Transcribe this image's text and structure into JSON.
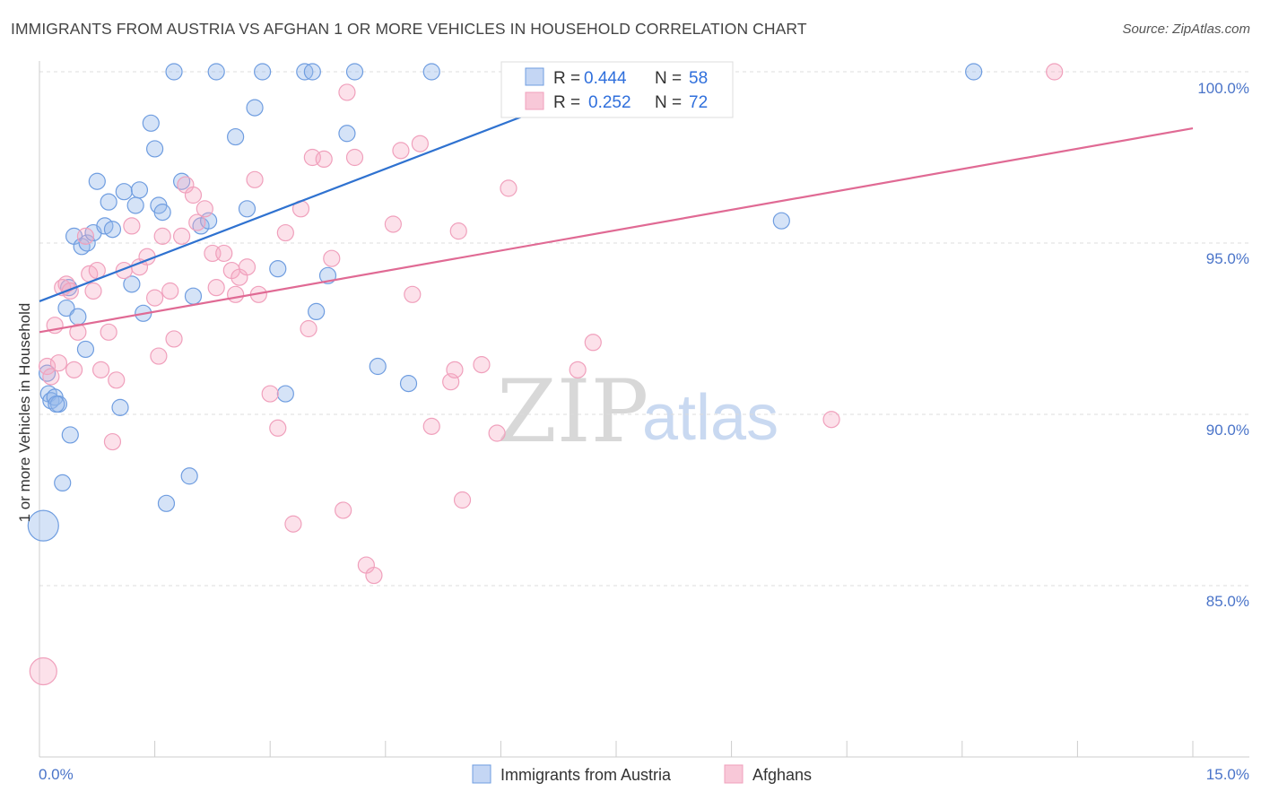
{
  "title": "IMMIGRANTS FROM AUSTRIA VS AFGHAN 1 OR MORE VEHICLES IN HOUSEHOLD CORRELATION CHART",
  "source": "Source: ZipAtlas.com",
  "watermark": {
    "zip": "ZIP",
    "atlas": "atlas"
  },
  "colors": {
    "blue": "#6f9de0",
    "blue_line": "#2f72d0",
    "pink": "#f0a0bc",
    "pink_line": "#e06a94"
  },
  "legend": {
    "r_label": "R =",
    "n_label": "N =",
    "rows": [
      {
        "r": "0.444",
        "n": "58"
      },
      {
        "r": "0.252",
        "n": "72"
      }
    ]
  },
  "chart_data": {
    "type": "scatter",
    "title": "IMMIGRANTS FROM AUSTRIA VS AFGHAN 1 OR MORE VEHICLES IN HOUSEHOLD CORRELATION CHART",
    "xlabel": "",
    "ylabel": "1 or more Vehicles in Household",
    "xlim": [
      0,
      15
    ],
    "ylim": [
      80.5,
      100.5
    ],
    "x_tick_labels": [
      "0.0%",
      "15.0%"
    ],
    "y_ticks": [
      85,
      90,
      95,
      100
    ],
    "y_tick_labels": [
      "85.0%",
      "90.0%",
      "95.0%",
      "100.0%"
    ],
    "grid": true,
    "legend_position": "top-center",
    "series": [
      {
        "name": "Immigrants from Austria",
        "r": 0.444,
        "n": 58,
        "trend": {
          "x": [
            0,
            7.8
          ],
          "y": [
            93.3,
            100.0
          ]
        },
        "points": [
          [
            0.05,
            86.75,
            3
          ],
          [
            0.1,
            91.2,
            1
          ],
          [
            0.12,
            90.6,
            1
          ],
          [
            0.15,
            90.4,
            1
          ],
          [
            0.2,
            90.5,
            1
          ],
          [
            0.25,
            90.3,
            1
          ],
          [
            0.3,
            88.0,
            1
          ],
          [
            0.35,
            93.1,
            1
          ],
          [
            0.38,
            93.7,
            1
          ],
          [
            0.4,
            89.4,
            1
          ],
          [
            0.45,
            95.2,
            1
          ],
          [
            0.5,
            92.85,
            1
          ],
          [
            0.55,
            94.9,
            1
          ],
          [
            0.6,
            91.9,
            1
          ],
          [
            0.62,
            95.0,
            1
          ],
          [
            0.7,
            95.3,
            1
          ],
          [
            0.75,
            96.8,
            1
          ],
          [
            0.85,
            95.5,
            1
          ],
          [
            0.9,
            96.2,
            1
          ],
          [
            0.95,
            95.4,
            1
          ],
          [
            1.05,
            90.2,
            1
          ],
          [
            1.1,
            96.5,
            1
          ],
          [
            1.2,
            93.8,
            1
          ],
          [
            1.25,
            96.1,
            1
          ],
          [
            1.3,
            96.55,
            1
          ],
          [
            1.35,
            92.95,
            1
          ],
          [
            1.45,
            98.5,
            1
          ],
          [
            1.5,
            97.75,
            1
          ],
          [
            1.55,
            96.1,
            1
          ],
          [
            1.6,
            95.9,
            1
          ],
          [
            1.65,
            87.4,
            1
          ],
          [
            1.75,
            100.0,
            1
          ],
          [
            1.85,
            96.8,
            1
          ],
          [
            1.95,
            88.2,
            1
          ],
          [
            2.0,
            93.45,
            1
          ],
          [
            2.1,
            95.5,
            1
          ],
          [
            2.2,
            95.65,
            1
          ],
          [
            2.3,
            100.0,
            1
          ],
          [
            2.55,
            98.1,
            1
          ],
          [
            2.7,
            96.0,
            1
          ],
          [
            2.8,
            98.95,
            1
          ],
          [
            2.9,
            100.0,
            1
          ],
          [
            3.1,
            94.25,
            1
          ],
          [
            3.2,
            90.6,
            1
          ],
          [
            3.45,
            100.0,
            1
          ],
          [
            3.55,
            100.0,
            1
          ],
          [
            3.6,
            93.0,
            1
          ],
          [
            3.75,
            94.05,
            1
          ],
          [
            4.0,
            98.2,
            1
          ],
          [
            4.1,
            100.0,
            1
          ],
          [
            4.4,
            91.4,
            1
          ],
          [
            4.8,
            90.9,
            1
          ],
          [
            5.1,
            100.0,
            1
          ],
          [
            7.0,
            100.0,
            1
          ],
          [
            8.0,
            100.0,
            1
          ],
          [
            9.65,
            95.65,
            1
          ],
          [
            12.15,
            100.0,
            1
          ],
          [
            0.22,
            90.3,
            1
          ]
        ]
      },
      {
        "name": "Afghans",
        "r": 0.252,
        "n": 72,
        "trend": {
          "x": [
            0,
            15
          ],
          "y": [
            92.4,
            98.35
          ]
        },
        "points": [
          [
            0.05,
            82.5,
            2
          ],
          [
            0.1,
            91.4,
            1
          ],
          [
            0.15,
            91.1,
            1
          ],
          [
            0.2,
            92.6,
            1
          ],
          [
            0.25,
            91.5,
            1
          ],
          [
            0.3,
            93.7,
            1
          ],
          [
            0.35,
            93.8,
            1
          ],
          [
            0.4,
            93.6,
            1
          ],
          [
            0.45,
            91.3,
            1
          ],
          [
            0.5,
            92.4,
            1
          ],
          [
            0.6,
            95.2,
            1
          ],
          [
            0.65,
            94.1,
            1
          ],
          [
            0.7,
            93.6,
            1
          ],
          [
            0.75,
            94.2,
            1
          ],
          [
            0.8,
            91.3,
            1
          ],
          [
            0.9,
            92.4,
            1
          ],
          [
            0.95,
            89.2,
            1
          ],
          [
            1.0,
            91.0,
            1
          ],
          [
            1.1,
            94.2,
            1
          ],
          [
            1.2,
            95.5,
            1
          ],
          [
            1.3,
            94.3,
            1
          ],
          [
            1.4,
            94.6,
            1
          ],
          [
            1.5,
            93.4,
            1
          ],
          [
            1.55,
            91.7,
            1
          ],
          [
            1.6,
            95.2,
            1
          ],
          [
            1.7,
            93.6,
            1
          ],
          [
            1.75,
            92.2,
            1
          ],
          [
            1.85,
            95.2,
            1
          ],
          [
            1.9,
            96.7,
            1
          ],
          [
            2.0,
            96.4,
            1
          ],
          [
            2.05,
            95.6,
            1
          ],
          [
            2.15,
            96.0,
            1
          ],
          [
            2.25,
            94.7,
            1
          ],
          [
            2.3,
            93.7,
            1
          ],
          [
            2.4,
            94.7,
            1
          ],
          [
            2.5,
            94.2,
            1
          ],
          [
            2.55,
            93.5,
            1
          ],
          [
            2.6,
            94.0,
            1
          ],
          [
            2.7,
            94.3,
            1
          ],
          [
            2.8,
            96.85,
            1
          ],
          [
            2.85,
            93.5,
            1
          ],
          [
            3.0,
            90.6,
            1
          ],
          [
            3.1,
            89.6,
            1
          ],
          [
            3.2,
            95.3,
            1
          ],
          [
            3.3,
            86.8,
            1
          ],
          [
            3.4,
            96.0,
            1
          ],
          [
            3.5,
            92.5,
            1
          ],
          [
            3.55,
            97.5,
            1
          ],
          [
            3.7,
            97.45,
            1
          ],
          [
            3.8,
            94.55,
            1
          ],
          [
            3.95,
            87.2,
            1
          ],
          [
            4.0,
            99.4,
            1
          ],
          [
            4.1,
            97.5,
            1
          ],
          [
            4.25,
            85.6,
            1
          ],
          [
            4.35,
            85.3,
            1
          ],
          [
            4.6,
            95.55,
            1
          ],
          [
            4.7,
            97.7,
            1
          ],
          [
            4.85,
            93.5,
            1
          ],
          [
            4.95,
            97.9,
            1
          ],
          [
            5.1,
            89.65,
            1
          ],
          [
            5.35,
            90.95,
            1
          ],
          [
            5.4,
            91.3,
            1
          ],
          [
            5.45,
            95.35,
            1
          ],
          [
            5.5,
            87.5,
            1
          ],
          [
            5.75,
            91.45,
            1
          ],
          [
            5.95,
            89.45,
            1
          ],
          [
            6.1,
            96.6,
            1
          ],
          [
            7.0,
            91.3,
            1
          ],
          [
            7.2,
            92.1,
            1
          ],
          [
            8.8,
            100.0,
            1
          ],
          [
            10.3,
            89.85,
            1
          ],
          [
            13.2,
            100.0,
            1
          ]
        ]
      }
    ]
  }
}
